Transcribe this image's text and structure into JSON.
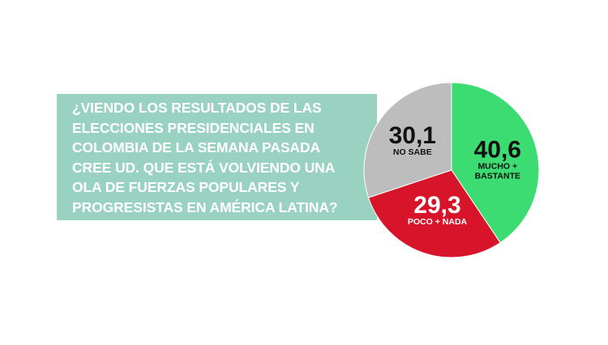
{
  "question": {
    "lines": [
      "¿VIENDO LOS RESULTADOS DE LAS",
      "ELECCIONES PRESIDENCIALES EN",
      "COLOMBIA DE LA SEMANA PASADA",
      "CREE UD. QUE ESTÁ VOLVIENDO UNA",
      "OLA DE FUERZAS POPULARES Y",
      "PROGRESISTAS EN AMÉRICA LATINA?"
    ]
  },
  "chart_data": {
    "type": "pie",
    "slices": [
      {
        "label": "MUCHO + BASTANTE",
        "label_lines": [
          "MUCHO +",
          "BASTANTE"
        ],
        "value": 40.6,
        "display": "40,6",
        "color": "#3ddc72",
        "text_color": "#111111"
      },
      {
        "label": "POCO + NADA",
        "label_lines": [
          "POCO + NADA"
        ],
        "value": 29.3,
        "display": "29,3",
        "color": "#d8142b",
        "text_color": "#ffffff"
      },
      {
        "label": "NO SABE",
        "label_lines": [
          "NO SABE"
        ],
        "value": 30.1,
        "display": "30,1",
        "color": "#bdbdbd",
        "text_color": "#111111"
      }
    ]
  }
}
